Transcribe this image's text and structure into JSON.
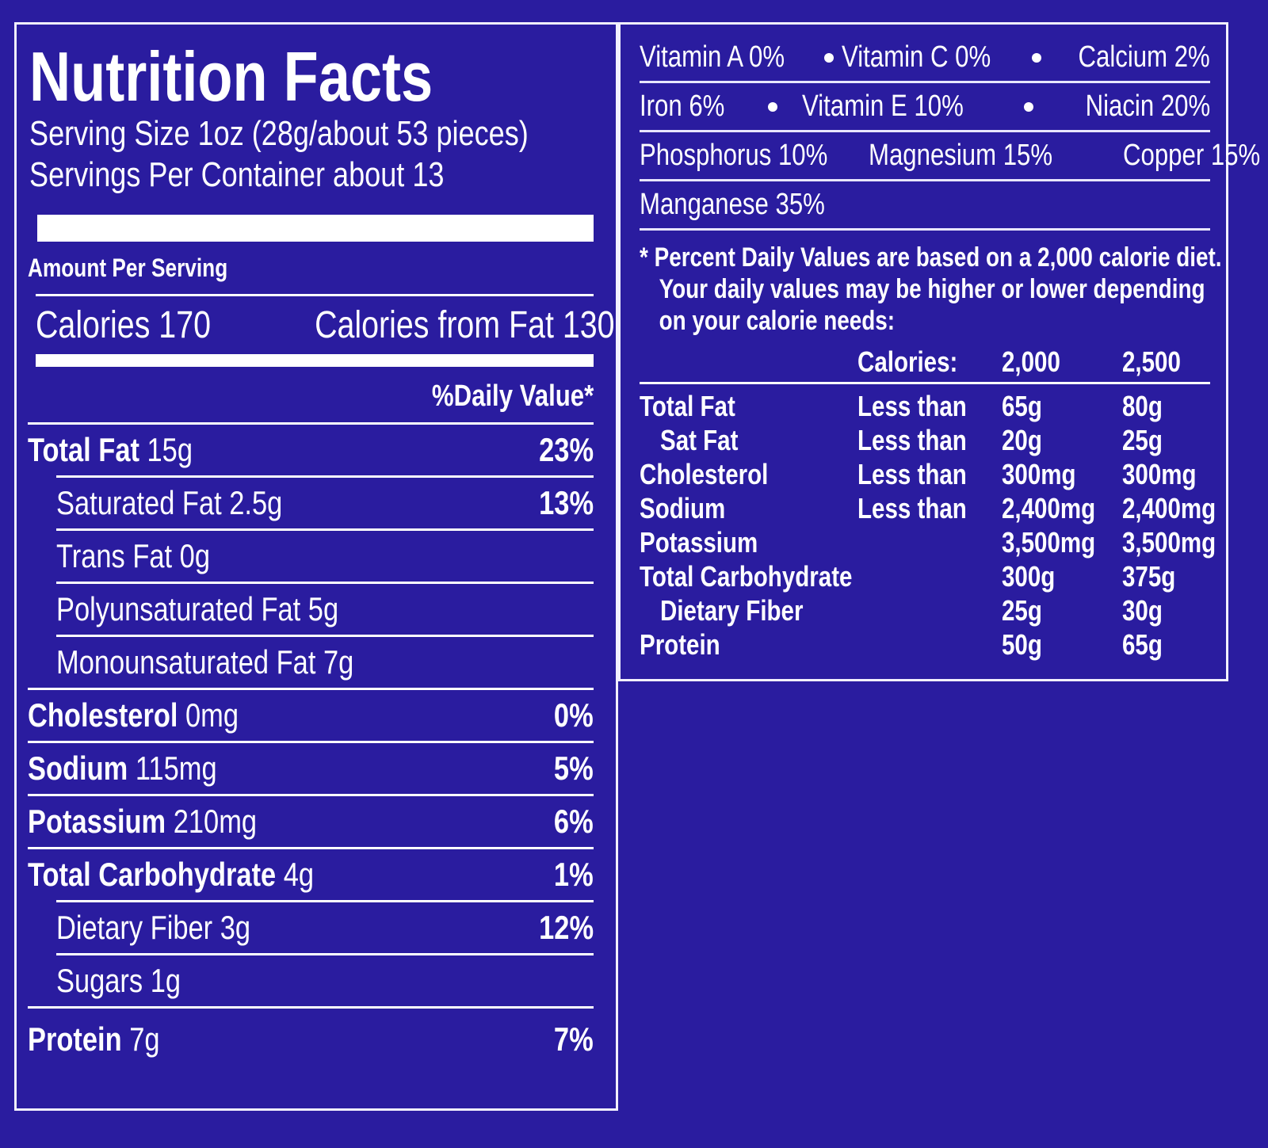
{
  "title": "Nutrition Facts",
  "serving_size": "Serving Size 1oz (28g/about 53 pieces)",
  "servings_per_container": "Servings Per Container about 13",
  "amount_per_serving": "Amount Per Serving",
  "calories": "Calories 170",
  "calories_from_fat": "Calories from Fat 130",
  "daily_value_header": "%Daily Value*",
  "nutrients": [
    {
      "name": "Total Fat",
      "amount": "15g",
      "dv": "23%",
      "subs": [
        {
          "name": "Saturated Fat",
          "amount": "2.5g",
          "dv": "13%"
        },
        {
          "name": "Trans Fat",
          "amount": "0g"
        },
        {
          "name": "Polyunsaturated Fat",
          "amount": "5g"
        },
        {
          "name": "Monounsaturated Fat",
          "amount": "7g"
        }
      ]
    },
    {
      "name": "Cholesterol",
      "amount": "0mg",
      "dv": "0%"
    },
    {
      "name": "Sodium",
      "amount": "115mg",
      "dv": "5%"
    },
    {
      "name": "Potassium",
      "amount": "210mg",
      "dv": "6%"
    },
    {
      "name": "Total Carbohydrate",
      "amount": "4g",
      "dv": "1%",
      "subs": [
        {
          "name": "Dietary Fiber",
          "amount": "3g",
          "dv": "12%"
        },
        {
          "name": "Sugars",
          "amount": "1g"
        }
      ]
    },
    {
      "name": "Protein",
      "amount": "7g",
      "dv": "7%"
    }
  ],
  "vitamins": [
    [
      "Vitamin A 0%",
      "Vitamin C 0%",
      "Calcium 2%"
    ],
    [
      "Iron 6%",
      "Vitamin E 10%",
      "Niacin 20%"
    ],
    [
      "Phosphorus 10%",
      "Magnesium 15%",
      "Copper 15%"
    ],
    [
      "Manganese 35%"
    ]
  ],
  "footnote": "* Percent Daily Values are based on a 2,000 calorie diet. Your daily values may be higher or lower depending on your calorie needs:",
  "reference_table": {
    "header": [
      "Calories:",
      "2,000",
      "2,500"
    ],
    "rows": [
      {
        "name": "Total Fat",
        "qualifier": "Less than",
        "values": [
          "65g",
          "80g"
        ],
        "subs": [
          {
            "name": "Sat Fat",
            "qualifier": "Less than",
            "values": [
              "20g",
              "25g"
            ]
          }
        ]
      },
      {
        "name": "Cholesterol",
        "qualifier": "Less than",
        "values": [
          "300mg",
          "300mg"
        ]
      },
      {
        "name": "Sodium",
        "qualifier": "Less than",
        "values": [
          "2,400mg",
          "2,400mg"
        ]
      },
      {
        "name": "Potassium",
        "values": [
          "3,500mg",
          "3,500mg"
        ]
      },
      {
        "name": "Total Carbohydrate",
        "values": [
          "300g",
          "375g"
        ],
        "subs": [
          {
            "name": "Dietary Fiber",
            "values": [
              "25g",
              "30g"
            ]
          }
        ]
      },
      {
        "name": "Protein",
        "values": [
          "50g",
          "65g"
        ]
      }
    ]
  }
}
